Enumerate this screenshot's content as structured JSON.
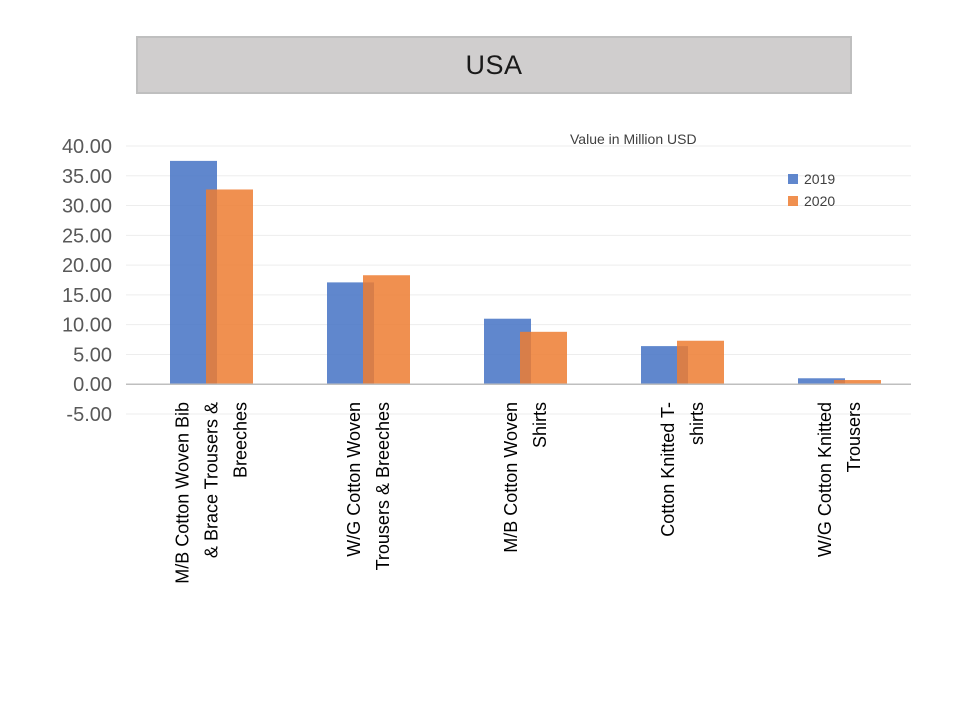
{
  "chart_data": {
    "type": "bar",
    "title": "USA",
    "unit_label": "Value in Million USD",
    "categories": [
      [
        "M/B Cotton Woven Bib",
        "& Brace Trousers &",
        "Breeches"
      ],
      [
        "W/G Cotton Woven",
        "Trousers & Breeches"
      ],
      [
        "M/B Cotton Woven",
        "Shirts"
      ],
      [
        "Cotton Knitted  T-",
        "shirts"
      ],
      [
        "W/G Cotton Knitted",
        "Trousers"
      ]
    ],
    "series": [
      {
        "name": "2019",
        "color": "#4472c4",
        "values": [
          37.5,
          17.1,
          11.0,
          6.4,
          1.0
        ]
      },
      {
        "name": "2020",
        "color": "#ed7d31",
        "values": [
          32.7,
          18.3,
          8.8,
          7.3,
          0.7
        ]
      }
    ],
    "ylim": [
      -5,
      40
    ],
    "yticks": [
      "-5.00",
      "0.00",
      "5.00",
      "10.00",
      "15.00",
      "20.00",
      "25.00",
      "30.00",
      "35.00",
      "40.00"
    ],
    "grid": true,
    "legend_position": "top-right"
  }
}
